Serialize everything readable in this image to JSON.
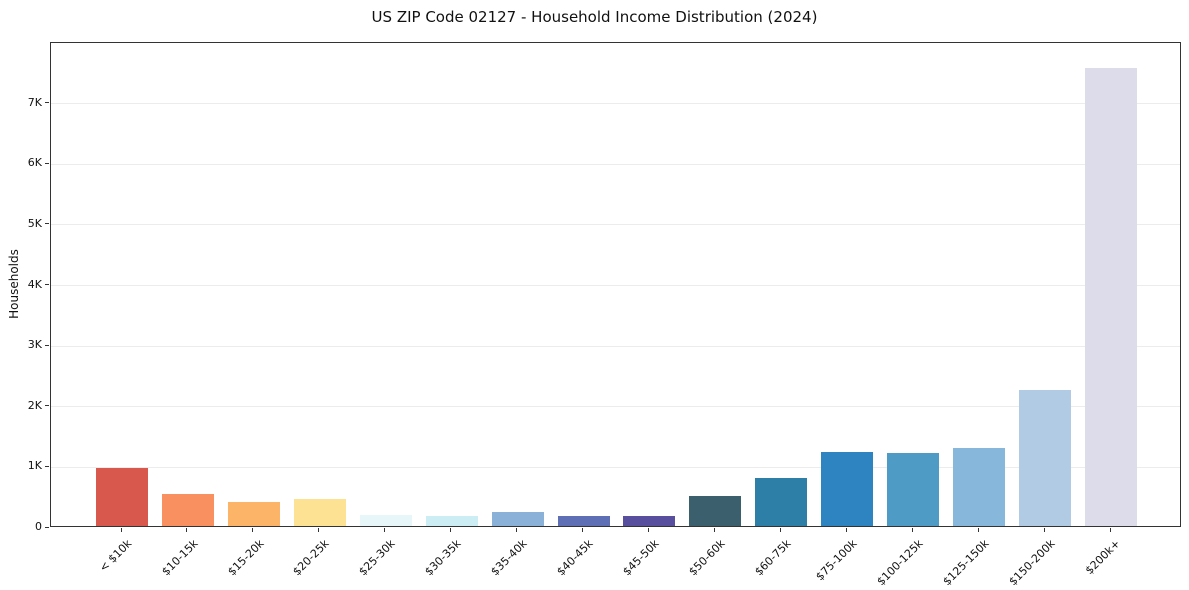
{
  "chart_data": {
    "type": "bar",
    "title": "US ZIP Code 02127 - Household Income Distribution (2024)",
    "xlabel": "",
    "ylabel": "Households",
    "ylim": [
      0,
      8000
    ],
    "yticks": [
      0,
      1000,
      2000,
      3000,
      4000,
      5000,
      6000,
      7000
    ],
    "ytick_labels": [
      "0",
      "1K",
      "2K",
      "3K",
      "4K",
      "5K",
      "6K",
      "7K"
    ],
    "categories": [
      "< $10k",
      "$10-15k",
      "$15-20k",
      "$20-25k",
      "$25-30k",
      "$30-35k",
      "$35-40k",
      "$40-45k",
      "$45-50k",
      "$50-60k",
      "$60-75k",
      "$75-100k",
      "$100-125k",
      "$125-150k",
      "$150-200k",
      "$200k+"
    ],
    "values": [
      960,
      520,
      400,
      440,
      185,
      165,
      230,
      170,
      170,
      500,
      800,
      1220,
      1200,
      1280,
      2240,
      7560
    ],
    "bar_colors": [
      "#d8584d",
      "#f8915f",
      "#fbb468",
      "#fde293",
      "#e7f6f8",
      "#cdedf5",
      "#8ab2d8",
      "#5f6fb5",
      "#584f9f",
      "#3b5f6d",
      "#2d7fa8",
      "#2d84c0",
      "#4e9bc6",
      "#87b7da",
      "#b2cbe4",
      "#dcdcea"
    ],
    "grid": "horizontal",
    "legend": "none",
    "x_tick_rotation": 45,
    "background": "#ffffff"
  }
}
